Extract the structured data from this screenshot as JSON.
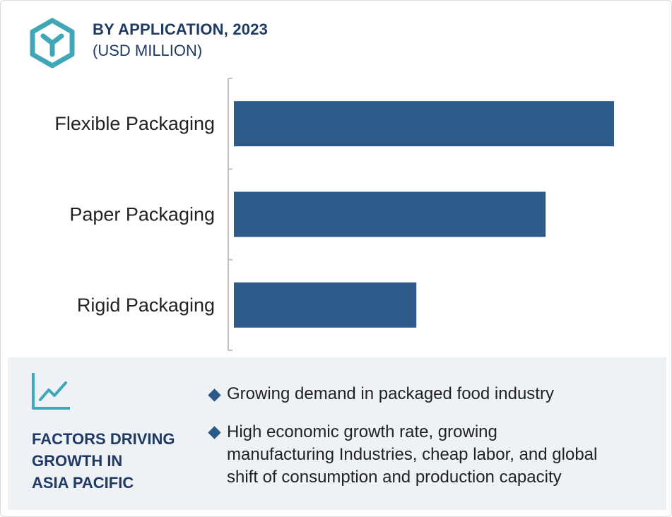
{
  "header": {
    "title": "BY APPLICATION, 2023",
    "subtitle": "(USD MILLION)",
    "icon": "cube-y-icon"
  },
  "colors": {
    "bar": "#2e5b8a",
    "title": "#1f3a63",
    "logo": "#3fa7b7",
    "panel_bg": "#eef1f6"
  },
  "chart_data": {
    "type": "bar",
    "orientation": "horizontal",
    "title": "BY APPLICATION, 2023",
    "subtitle": "(USD MILLION)",
    "categories": [
      "Flexible Packaging",
      "Paper Packaging",
      "Rigid Packaging"
    ],
    "values": [
      100,
      82,
      48
    ],
    "xlim": [
      0,
      100
    ],
    "grid": false,
    "value_labels": false
  },
  "factors": {
    "icon": "trend-chart-icon",
    "title_lines": [
      "FACTORS DRIVING",
      "GROWTH IN",
      "ASIA PACIFIC"
    ],
    "items": [
      {
        "lines": [
          "Growing demand in packaged food industry"
        ]
      },
      {
        "lines": [
          "High economic growth rate, growing",
          "manufacturing Industries, cheap labor, and global",
          "shift of consumption and production capacity"
        ]
      }
    ]
  }
}
